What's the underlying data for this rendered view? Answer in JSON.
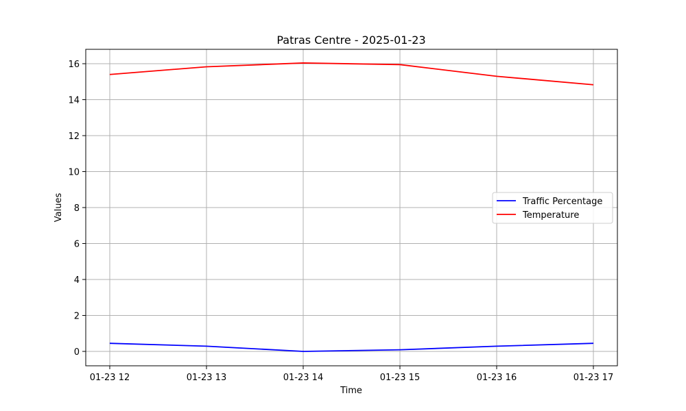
{
  "chart_data": {
    "type": "line",
    "title": "Patras Centre - 2025-01-23",
    "xlabel": "Time",
    "ylabel": "Values",
    "x": [
      "01-23 12",
      "01-23 13",
      "01-23 14",
      "01-23 15",
      "01-23 16",
      "01-23 17"
    ],
    "ylim": [
      -0.8,
      16.8
    ],
    "yticks": [
      0,
      2,
      4,
      6,
      8,
      10,
      12,
      14,
      16
    ],
    "grid": true,
    "legend_position": "center-right",
    "series": [
      {
        "name": "Traffic Percentage",
        "color": "#0000ff",
        "values": [
          0.45,
          0.29,
          0.0,
          0.09,
          0.29,
          0.45
        ]
      },
      {
        "name": "Temperature",
        "color": "#ff0000",
        "values": [
          15.4,
          15.83,
          16.04,
          15.95,
          15.3,
          14.83
        ]
      }
    ]
  }
}
